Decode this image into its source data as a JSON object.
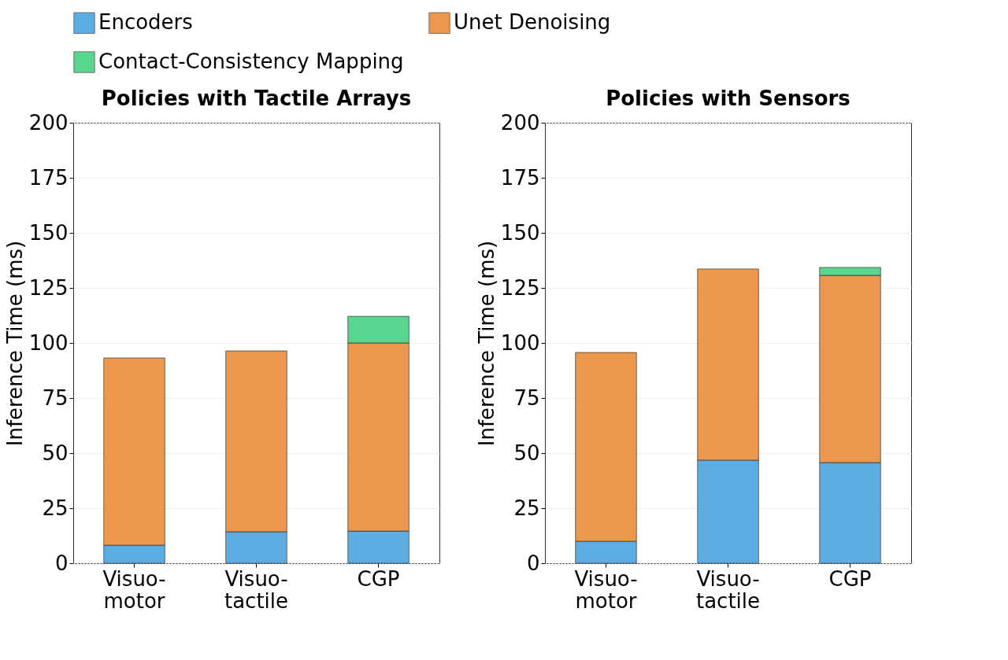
{
  "chart_data": [
    {
      "type": "bar",
      "stacked": true,
      "title": "Policies with Tactile Arrays",
      "ylabel": "Inference Time (ms)",
      "categories": [
        "Visuo-\nmotor",
        "Visuo-\ntactile",
        "CGP"
      ],
      "series": [
        {
          "name": "Encoders",
          "color": "#5dade2",
          "values": [
            8.2,
            14.3,
            14.6
          ]
        },
        {
          "name": "Unet Denoising",
          "color": "#eb984e",
          "values": [
            85,
            82.1,
            85.4
          ]
        },
        {
          "name": "Contact-Consistency Mapping",
          "color": "#58d68d",
          "values": [
            null,
            null,
            12.1
          ]
        }
      ],
      "ylim": [
        0,
        200
      ],
      "yticks": [
        0,
        25,
        50,
        75,
        100,
        125,
        150,
        175,
        200
      ],
      "grid": "y",
      "legend": "top"
    },
    {
      "type": "bar",
      "stacked": true,
      "title": "Policies with Sensors",
      "ylabel": "Inference Time (ms)",
      "categories": [
        "Visuo-\nmotor",
        "Visuo-\ntactile",
        "CGP"
      ],
      "series": [
        {
          "name": "Encoders",
          "color": "#5dade2",
          "values": [
            10,
            46.8,
            45.7
          ]
        },
        {
          "name": "Unet Denoising",
          "color": "#eb984e",
          "values": [
            85.7,
            86.8,
            85
          ]
        },
        {
          "name": "Contact-Consistency Mapping",
          "color": "#58d68d",
          "values": [
            null,
            null,
            3.6
          ]
        }
      ],
      "ylim": [
        0,
        200
      ],
      "yticks": [
        0,
        25,
        50,
        75,
        100,
        125,
        150,
        175,
        200
      ],
      "grid": "y",
      "legend": "top"
    }
  ]
}
